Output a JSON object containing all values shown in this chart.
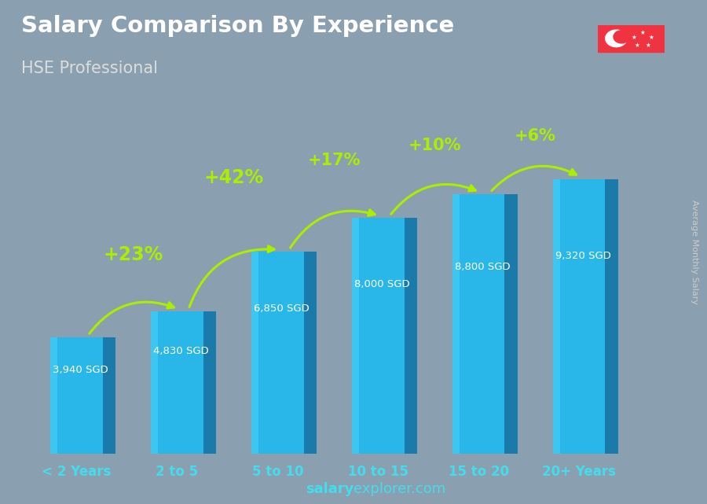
{
  "title": "Salary Comparison By Experience",
  "subtitle": "HSE Professional",
  "ylabel": "Average Monthly Salary",
  "website": "salaryexplorer.com",
  "categories": [
    "< 2 Years",
    "2 to 5",
    "5 to 10",
    "10 to 15",
    "15 to 20",
    "20+ Years"
  ],
  "values": [
    3940,
    4830,
    6850,
    8000,
    8800,
    9320
  ],
  "value_labels": [
    "3,940 SGD",
    "4,830 SGD",
    "6,850 SGD",
    "8,000 SGD",
    "8,800 SGD",
    "9,320 SGD"
  ],
  "pct_changes": [
    null,
    "+23%",
    "+42%",
    "+17%",
    "+10%",
    "+6%"
  ],
  "bar_color_face": "#29b6e8",
  "bar_color_right": "#1a7aaa",
  "bar_color_top": "#55d0f5",
  "background_color": "#8a9faf",
  "title_color": "#ffffff",
  "subtitle_color": "#dddddd",
  "label_color": "#ffffff",
  "pct_color": "#aaee00",
  "xtick_color": "#44ddee",
  "website_bold_color": "#44ddee",
  "website_normal_color": "#44ddee",
  "ylabel_color": "#cccccc",
  "fig_width": 9.0,
  "fig_height": 6.41
}
